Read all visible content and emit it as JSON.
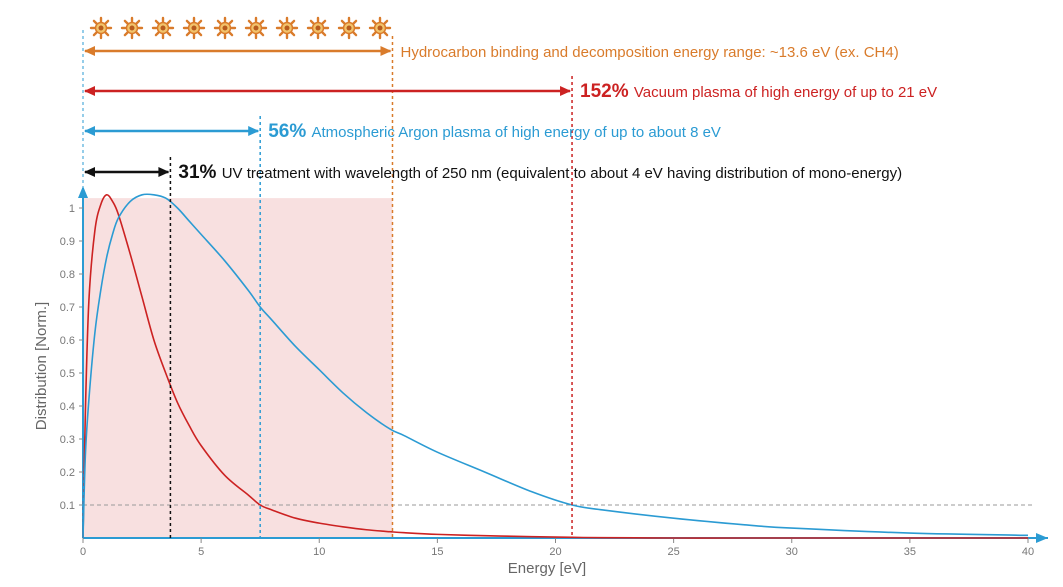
{
  "chart_data": {
    "type": "line",
    "xlabel": "Energy [eV]",
    "ylabel": "Distribution [Norm.]",
    "xlim": [
      0,
      40
    ],
    "ylim": [
      0,
      1.03
    ],
    "x_ticks": [
      "0",
      "5",
      "10",
      "15",
      "20",
      "25",
      "30",
      "35",
      "40"
    ],
    "y_ticks": [
      "0.1",
      "0.2",
      "0.3",
      "0.4",
      "0.5",
      "0.6",
      "0.7",
      "0.8",
      "0.9",
      "1"
    ],
    "x": [
      0,
      0.1,
      0.25,
      0.5,
      0.75,
      1,
      1.25,
      1.5,
      2,
      2.5,
      3,
      3.5,
      4,
      4.5,
      5,
      6,
      7,
      7.5,
      8,
      9,
      10,
      11,
      12,
      13,
      13.6,
      15,
      17,
      19,
      20.7,
      22,
      25,
      28,
      30,
      35,
      40
    ],
    "series": [
      {
        "color": "#cc2222",
        "values": [
          0,
          0.38,
          0.72,
          0.93,
          1.01,
          1.04,
          1.02,
          0.98,
          0.86,
          0.73,
          0.6,
          0.5,
          0.41,
          0.34,
          0.28,
          0.19,
          0.13,
          0.1,
          0.085,
          0.06,
          0.045,
          0.034,
          0.025,
          0.019,
          0.016,
          0.011,
          0.007,
          0.004,
          0.002,
          0.001,
          0.0,
          0.0,
          0.0,
          0.0,
          0.0
        ]
      },
      {
        "color": "#2b9bd3",
        "values": [
          0,
          0.25,
          0.42,
          0.62,
          0.75,
          0.85,
          0.92,
          0.97,
          1.02,
          1.04,
          1.04,
          1.03,
          1.0,
          0.96,
          0.92,
          0.84,
          0.75,
          0.7,
          0.66,
          0.58,
          0.51,
          0.44,
          0.38,
          0.33,
          0.31,
          0.26,
          0.2,
          0.14,
          0.1,
          0.085,
          0.06,
          0.04,
          0.03,
          0.015,
          0.008
        ]
      }
    ],
    "reference_line_y": 0.1,
    "shaded_region": {
      "x": [
        0,
        13.1
      ],
      "y": [
        0,
        1.03
      ],
      "color": "#f5d5d5"
    },
    "markers": [
      {
        "id": "hydrocarbon",
        "x": 13.1,
        "color": "#d97b2b",
        "pct": "",
        "label": "Hydrocarbon binding and decomposition energy range: ~13.6 eV (ex. CH4)"
      },
      {
        "id": "vacuum",
        "x": 20.7,
        "color": "#cc2222",
        "pct": "152%",
        "label": "Vacuum plasma of high energy of up to 21 eV"
      },
      {
        "id": "argon",
        "x": 7.5,
        "color": "#2b9bd3",
        "pct": "56%",
        "label": "Atmospheric Argon plasma of high energy of up to about 8 eV"
      },
      {
        "id": "uv",
        "x": 3.7,
        "color": "#111111",
        "pct": "31%",
        "label": "UV treatment with wavelength of 250 nm (equivalent to about 4 eV having distribution of mono-energy)"
      }
    ],
    "sun_icon": {
      "count": 10,
      "color": "#d97b2b"
    }
  }
}
